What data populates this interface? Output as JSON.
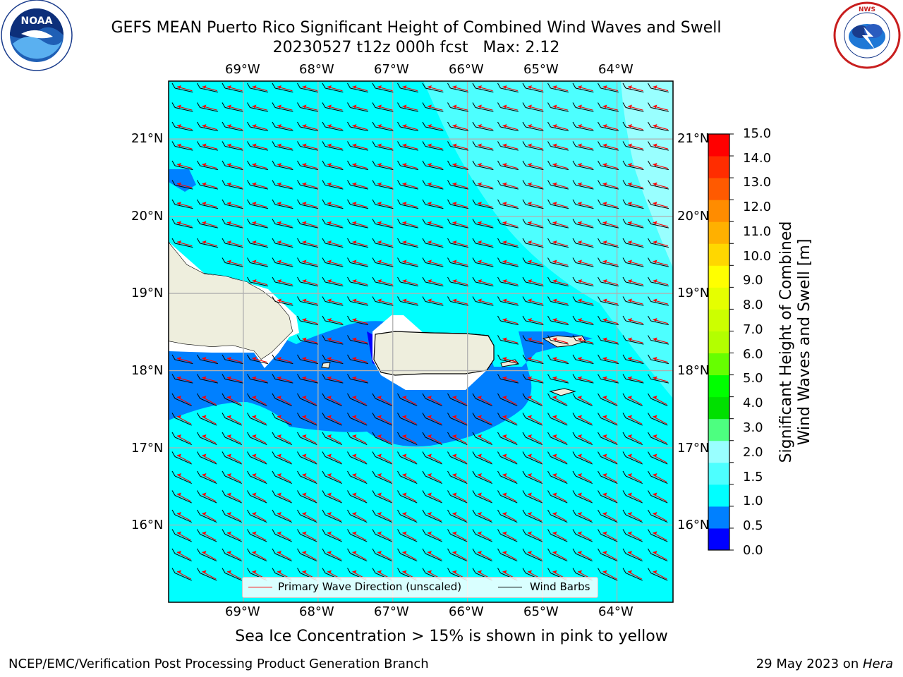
{
  "title": {
    "line1": "GEFS MEAN Puerto Rico Significant Height of Combined Wind Waves and Swell",
    "line2": "20230527 t12z 000h fcst   Max: 2.12"
  },
  "logos": {
    "left": {
      "name": "noaa-logo",
      "text": "NOAA"
    },
    "right": {
      "name": "nws-logo",
      "text": "NATIONAL WEATHER SERVICE"
    }
  },
  "map": {
    "lon_labels": [
      "69°W",
      "68°W",
      "67°W",
      "66°W",
      "65°W",
      "64°W"
    ],
    "lat_labels": [
      "21°N",
      "20°N",
      "19°N",
      "18°N",
      "17°N",
      "16°N"
    ],
    "extent": {
      "lon_min": -70.0,
      "lon_max": -63.25,
      "lat_min": 15.0,
      "lat_max": 21.75
    },
    "colors": {
      "cyan": "#00ffff",
      "light_cyan": "#99ffff",
      "blue": "#0080ff",
      "dark_blue": "#0000ff",
      "land": "#eeeedd",
      "arrow": "#ff0000",
      "barb": "#000000",
      "grid": "#b0b0b0"
    }
  },
  "legend": {
    "wave_label": "Primary Wave Direction (unscaled)",
    "barb_label": "Wind Barbs"
  },
  "colorbar": {
    "label_line1": "Significant Height of Combined",
    "label_line2": "Wind Waves and Swell [m]",
    "ticks": [
      "15.0",
      "14.0",
      "13.0",
      "12.0",
      "11.0",
      "10.0",
      "9.0",
      "8.0",
      "7.0",
      "6.0",
      "5.0",
      "4.0",
      "3.0",
      "2.0",
      "1.5",
      "1.0",
      "0.5",
      "0.0"
    ],
    "colors": [
      "#0000ff",
      "#0080ff",
      "#00ffff",
      "#4dffff",
      "#99ffff",
      "#4dff80",
      "#00e000",
      "#00ff00",
      "#66ff00",
      "#b3ff00",
      "#ccff00",
      "#e5ff00",
      "#ffff00",
      "#ffd700",
      "#ffb000",
      "#ff8c00",
      "#ff5a00",
      "#ff2d00",
      "#ff0000"
    ]
  },
  "note": "Sea Ice Concentration > 15% is shown in pink to yellow",
  "footer": {
    "left": "NCEP/EMC/Verification Post Processing Product Generation Branch",
    "right_prefix": "29 May 2023 on ",
    "right_machine": "Hera"
  }
}
